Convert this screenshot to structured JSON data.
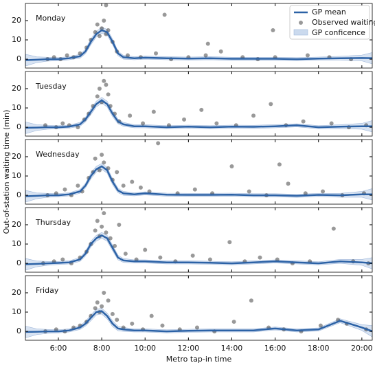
{
  "chart_data": [
    {
      "type": "line",
      "title": "Monday",
      "ylabel": "Out-of-station waiting time (min)",
      "legend": "upper right",
      "xlim": [
        4.48,
        20.48
      ],
      "ylim": [
        -4.6,
        28.9
      ],
      "yticks": [
        0,
        10,
        20
      ],
      "xticks": [
        {
          "value": 6,
          "label": "6:00"
        },
        {
          "value": 8,
          "label": "8:00"
        },
        {
          "value": 10,
          "label": "10:00"
        },
        {
          "value": 12,
          "label": "12:00"
        },
        {
          "value": 14,
          "label": "14:00"
        },
        {
          "value": 16,
          "label": "16:00"
        },
        {
          "value": 18,
          "label": "18:00"
        },
        {
          "value": 20,
          "label": "20:00"
        }
      ],
      "x": [
        4.5,
        5,
        5.5,
        6,
        6.5,
        7,
        7.25,
        7.5,
        7.75,
        8,
        8.25,
        8.5,
        8.75,
        9,
        9.5,
        10,
        11,
        12,
        13,
        14,
        15,
        16,
        17,
        18,
        19,
        20,
        20.5
      ],
      "series": [
        {
          "name": "GP mean",
          "color": "#2c62a6",
          "values": [
            -0.5,
            -0.3,
            0,
            0,
            0.5,
            1.5,
            4,
            9,
            13,
            15,
            14,
            9,
            3,
            1,
            0.5,
            0.8,
            0.5,
            0.3,
            0.5,
            0.2,
            0.2,
            0.2,
            0,
            0.3,
            0.5,
            0.6,
            0.5
          ]
        },
        {
          "name": "GP conficence",
          "color": "#cbdaee",
          "lower": [
            -3.5,
            -1.8,
            -1,
            -0.8,
            -0.3,
            0.5,
            2.8,
            7.5,
            11.5,
            13.5,
            12.5,
            7.5,
            1.8,
            0,
            -0.3,
            0,
            -0.3,
            -0.5,
            -0.3,
            -0.6,
            -0.6,
            -0.6,
            -0.8,
            -0.5,
            -0.5,
            -0.9,
            -2.5
          ],
          "upper": [
            2.5,
            1.2,
            1,
            0.8,
            1.3,
            2.5,
            5.2,
            10.5,
            14.5,
            16.5,
            15.5,
            10.5,
            4.2,
            2,
            1.3,
            1.6,
            1.3,
            1.1,
            1.3,
            1,
            1,
            1,
            0.8,
            1.1,
            1.5,
            2.1,
            3.5
          ]
        }
      ],
      "points": {
        "name": "Observed waiting",
        "color": "#000000",
        "x": [
          5.5,
          5.8,
          6.1,
          6.4,
          6.7,
          7.0,
          7.3,
          7.5,
          7.7,
          7.8,
          7.9,
          8.0,
          8.1,
          8.2,
          8.2,
          8.3,
          8.5,
          8.7,
          9.2,
          9.8,
          10.5,
          10.9,
          11.2,
          12.0,
          12.8,
          12.9,
          13.5,
          14.5,
          15.2,
          15.9,
          16.0,
          17.5,
          18.5,
          19.5
        ],
        "values": [
          0,
          1,
          0,
          2,
          1,
          3,
          6,
          10,
          14,
          18,
          12,
          16,
          20,
          13,
          28,
          15,
          9,
          4,
          2,
          1,
          3,
          23,
          0,
          1,
          2,
          8,
          4,
          1,
          0,
          15,
          1,
          2,
          1,
          0
        ]
      }
    },
    {
      "type": "line",
      "title": "Tuesday",
      "xlim": [
        4.48,
        20.48
      ],
      "ylim": [
        -4.6,
        28.9
      ],
      "yticks": [
        0,
        10,
        20
      ],
      "xticks": [
        6,
        8,
        10,
        12,
        14,
        16,
        18,
        20
      ],
      "x": [
        4.5,
        5,
        5.5,
        6,
        6.5,
        7,
        7.25,
        7.5,
        7.75,
        8,
        8.25,
        8.5,
        8.75,
        9,
        9.5,
        10,
        11,
        12,
        13,
        14,
        15,
        16,
        17,
        18,
        19,
        20,
        20.5
      ],
      "series": [
        {
          "color": "#2c62a6",
          "values": [
            -0.3,
            -0.2,
            0,
            0,
            0.3,
            1.5,
            4,
            8,
            12,
            14,
            12,
            7,
            3,
            1.5,
            0.5,
            0.5,
            0,
            0.3,
            0,
            0.3,
            0.2,
            0.5,
            1,
            0,
            0.3,
            0.5,
            0.5
          ]
        },
        {
          "color": "#cbdaee",
          "lower": [
            -3.3,
            -1.7,
            -1,
            -0.8,
            -0.5,
            0.5,
            2.8,
            6.5,
            10.5,
            12.5,
            10.5,
            5.5,
            1.8,
            0.5,
            -0.3,
            -0.3,
            -0.8,
            -0.5,
            -0.8,
            -0.5,
            -0.6,
            -0.3,
            0.2,
            -0.8,
            -0.7,
            -1,
            -2.5
          ],
          "upper": [
            2.7,
            1.3,
            1,
            0.8,
            1.1,
            2.5,
            5.2,
            9.5,
            13.5,
            15.5,
            13.5,
            8.5,
            4.2,
            2.5,
            1.3,
            1.3,
            0.8,
            1.1,
            0.8,
            1.1,
            1,
            1.3,
            1.8,
            0.8,
            1.3,
            2,
            3.5
          ]
        }
      ],
      "points": {
        "color": "#000000",
        "x": [
          5.4,
          5.9,
          6.2,
          6.5,
          6.9,
          7.2,
          7.4,
          7.6,
          7.8,
          7.9,
          8.0,
          8.1,
          8.2,
          8.3,
          8.4,
          8.6,
          8.8,
          9.3,
          9.9,
          10.4,
          11.1,
          11.8,
          12.6,
          13.3,
          14.2,
          15.0,
          15.8,
          16.5,
          17.3,
          18.6,
          19.4,
          20.2
        ],
        "values": [
          1,
          0,
          2,
          1,
          0,
          4,
          7,
          11,
          16,
          20,
          13,
          24,
          22,
          17,
          11,
          7,
          3,
          6,
          2,
          8,
          1,
          4,
          9,
          2,
          1,
          6,
          12,
          1,
          3,
          2,
          0,
          1
        ]
      }
    },
    {
      "type": "line",
      "title": "Wednesday",
      "xlim": [
        4.48,
        20.48
      ],
      "ylim": [
        -4.6,
        28.9
      ],
      "yticks": [
        0,
        10,
        20
      ],
      "xticks": [
        6,
        8,
        10,
        12,
        14,
        16,
        18,
        20
      ],
      "x": [
        4.5,
        5,
        5.5,
        6,
        6.5,
        7,
        7.25,
        7.5,
        7.75,
        8,
        8.25,
        8.5,
        8.75,
        9,
        9.5,
        10,
        11,
        12,
        13,
        14,
        15,
        16,
        17,
        18,
        19,
        20,
        20.5
      ],
      "series": [
        {
          "color": "#2c62a6",
          "values": [
            -0.5,
            -0.3,
            0,
            0,
            0.5,
            2,
            5,
            10,
            13.5,
            15,
            13,
            7,
            2.5,
            1,
            0.5,
            1,
            0.3,
            0.2,
            0.2,
            0.3,
            0,
            0,
            -0.3,
            0.2,
            0,
            0.5,
            0.5
          ]
        },
        {
          "color": "#cbdaee",
          "lower": [
            -3.5,
            -1.8,
            -1,
            -0.8,
            -0.3,
            1,
            3.8,
            8.5,
            12,
            13.5,
            11.5,
            5.5,
            1.3,
            0,
            -0.3,
            0.2,
            -0.5,
            -0.6,
            -0.6,
            -0.5,
            -0.8,
            -0.8,
            -1.1,
            -0.6,
            -1,
            -1,
            -2.5
          ],
          "upper": [
            2.5,
            1.2,
            1,
            0.8,
            1.3,
            3,
            6.2,
            11.5,
            15,
            16.5,
            14.5,
            8.5,
            3.7,
            2,
            1.3,
            1.8,
            1.1,
            1,
            1,
            1.1,
            0.8,
            0.8,
            0.5,
            1,
            1,
            2,
            3.5
          ]
        }
      ],
      "points": {
        "color": "#000000",
        "x": [
          5.5,
          5.9,
          6.3,
          6.6,
          6.9,
          7.1,
          7.4,
          7.6,
          7.7,
          7.9,
          8.0,
          8.1,
          8.3,
          8.5,
          8.7,
          9.0,
          9.4,
          9.8,
          10.2,
          10.6,
          11.5,
          12.3,
          13.1,
          14.0,
          14.8,
          15.6,
          16.2,
          16.6,
          17.4,
          18.2,
          19.1,
          20.1
        ],
        "values": [
          0,
          1,
          3,
          0,
          5,
          2,
          9,
          12,
          19,
          13,
          21,
          17,
          14,
          8,
          12,
          5,
          7,
          4,
          2,
          27,
          1,
          3,
          1,
          15,
          2,
          0,
          16,
          6,
          1,
          2,
          0,
          1
        ]
      }
    },
    {
      "type": "line",
      "title": "Thursday",
      "xlim": [
        4.48,
        20.48
      ],
      "ylim": [
        -4.6,
        28.9
      ],
      "yticks": [
        0,
        10,
        20
      ],
      "xticks": [
        6,
        8,
        10,
        12,
        14,
        16,
        18,
        20
      ],
      "x": [
        4.5,
        5,
        5.5,
        6,
        6.5,
        7,
        7.25,
        7.5,
        7.75,
        8,
        8.25,
        8.5,
        8.75,
        9,
        9.5,
        10,
        11,
        12,
        13,
        14,
        15,
        16,
        17,
        18,
        19,
        20,
        20.5
      ],
      "series": [
        {
          "color": "#2c62a6",
          "values": [
            -0.5,
            -0.3,
            0,
            0.2,
            0.5,
            2,
            5,
            10,
            13,
            14.5,
            13,
            8,
            3,
            1.5,
            1,
            1,
            0.5,
            0.5,
            0.3,
            0,
            0.5,
            1,
            0.5,
            0,
            1,
            0.5,
            0
          ]
        },
        {
          "color": "#cbdaee",
          "lower": [
            -3.5,
            -1.8,
            -1,
            -0.6,
            -0.3,
            1,
            3.8,
            8.5,
            11.5,
            13,
            11.5,
            6.5,
            1.8,
            0.5,
            0.2,
            0.2,
            -0.3,
            -0.3,
            -0.5,
            -0.8,
            -0.3,
            0.2,
            -0.3,
            -0.8,
            0,
            -1,
            -3
          ],
          "upper": [
            2.5,
            1.2,
            1,
            1,
            1.3,
            3,
            6.2,
            11.5,
            14.5,
            16,
            14.5,
            9.5,
            4.2,
            2.5,
            1.8,
            1.8,
            1.3,
            1.3,
            1.1,
            0.8,
            1.3,
            1.8,
            1.3,
            0.8,
            2,
            2,
            3
          ]
        }
      ],
      "points": {
        "color": "#000000",
        "x": [
          5.3,
          5.8,
          6.2,
          6.6,
          7.0,
          7.3,
          7.5,
          7.7,
          7.8,
          7.9,
          8.0,
          8.1,
          8.2,
          8.4,
          8.6,
          8.8,
          9.1,
          9.6,
          10.0,
          10.7,
          11.4,
          12.2,
          13.0,
          13.9,
          14.6,
          15.3,
          16.1,
          16.8,
          17.6,
          18.7,
          19.6,
          20.3
        ],
        "values": [
          0,
          1,
          2,
          0,
          3,
          6,
          10,
          17,
          22,
          14,
          19,
          26,
          16,
          13,
          9,
          20,
          5,
          2,
          7,
          3,
          1,
          4,
          2,
          11,
          1,
          3,
          2,
          0,
          1,
          18,
          1,
          0
        ]
      }
    },
    {
      "type": "line",
      "title": "Friday",
      "xlabel": "Metro tap-in time",
      "xlim": [
        4.48,
        20.48
      ],
      "ylim": [
        -4.6,
        28.9
      ],
      "yticks": [
        0,
        10,
        20
      ],
      "xticks": [
        6,
        8,
        10,
        12,
        14,
        16,
        18,
        20
      ],
      "x": [
        4.5,
        5,
        5.5,
        6,
        6.5,
        7,
        7.25,
        7.5,
        7.75,
        8,
        8.25,
        8.5,
        8.75,
        9,
        9.5,
        10,
        11,
        12,
        13,
        14,
        15,
        16,
        17,
        18,
        19,
        20,
        20.5
      ],
      "series": [
        {
          "color": "#2c62a6",
          "values": [
            -0.3,
            -0.2,
            0,
            0,
            0.5,
            2,
            4,
            7,
            10,
            10.5,
            8,
            4,
            1.5,
            1,
            0.5,
            0.5,
            0,
            0.3,
            0.5,
            0.5,
            0.5,
            1.5,
            0.5,
            1,
            5.5,
            2,
            0
          ]
        },
        {
          "color": "#cbdaee",
          "lower": [
            -3.3,
            -1.7,
            -1,
            -0.8,
            -0.3,
            1,
            2.8,
            5.5,
            8.5,
            9,
            6.5,
            2.5,
            0.3,
            0,
            -0.3,
            -0.3,
            -0.8,
            -0.5,
            -0.3,
            -0.3,
            -0.3,
            0.7,
            -0.3,
            0.2,
            4.5,
            0.5,
            -3
          ],
          "upper": [
            2.7,
            1.3,
            1,
            0.8,
            1.3,
            3,
            5.2,
            8.5,
            11.5,
            12,
            9.5,
            5.5,
            2.7,
            2,
            1.3,
            1.3,
            0.8,
            1.1,
            1.3,
            1.3,
            1.3,
            2.3,
            1.3,
            1.8,
            6.5,
            3.5,
            3
          ]
        }
      ],
      "points": {
        "color": "#000000",
        "x": [
          5.4,
          5.9,
          6.3,
          6.7,
          7.0,
          7.3,
          7.5,
          7.7,
          7.8,
          7.9,
          8.0,
          8.1,
          8.3,
          8.5,
          8.7,
          9.0,
          9.4,
          9.9,
          10.3,
          10.8,
          11.6,
          12.4,
          13.2,
          14.1,
          14.9,
          15.7,
          16.4,
          17.2,
          18.1,
          18.9,
          19.3,
          20.2
        ],
        "values": [
          0,
          1,
          0,
          2,
          3,
          5,
          8,
          12,
          15,
          10,
          13,
          20,
          16,
          9,
          6,
          2,
          4,
          1,
          8,
          3,
          1,
          2,
          0,
          5,
          16,
          2,
          1,
          0,
          3,
          6,
          4,
          1
        ]
      }
    }
  ]
}
